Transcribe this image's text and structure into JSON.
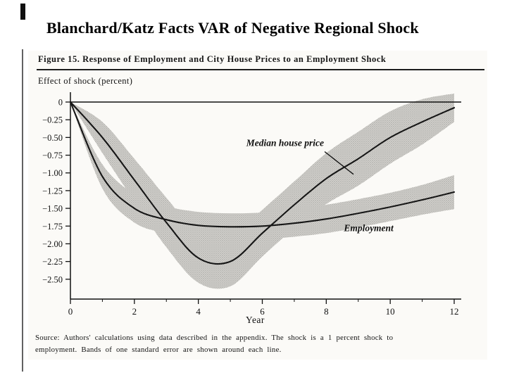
{
  "slide": {
    "title": "Blanchard/Katz Facts VAR of  Negative Regional Shock"
  },
  "figure": {
    "source_line1": "Source: Authors' calculations using data described in the appendix. The shock is a  1 percent shock to",
    "source_line2": "employment. Bands of one standard error are shown around each line."
  },
  "chart_data": {
    "type": "line",
    "title": "Figure 15.  Response of Employment and City House Prices to an Employment Shock",
    "xlabel": "Year",
    "ylabel": "Effect of shock (percent)",
    "x": [
      0,
      1,
      2,
      3,
      4,
      5,
      6,
      7,
      8,
      9,
      10,
      11,
      12
    ],
    "xlim": [
      0,
      12
    ],
    "ylim": [
      -2.78,
      0.15
    ],
    "x_ticks": [
      0,
      2,
      4,
      6,
      8,
      10,
      12
    ],
    "x_minor_ticks": [
      1,
      3,
      5,
      7,
      9,
      11
    ],
    "y_ticks": [
      0,
      -0.25,
      -0.5,
      -0.75,
      -1,
      -1.25,
      -1.5,
      -1.75,
      -2,
      -2.25,
      -2.5
    ],
    "grid": false,
    "legend_position": "inline-labels",
    "band_note": "one standard error",
    "series": [
      {
        "name": "Median house price",
        "values": [
          0,
          -0.5,
          -1.1,
          -1.7,
          -2.2,
          -2.25,
          -1.85,
          -1.45,
          -1.08,
          -0.8,
          -0.5,
          -0.28,
          -0.08
        ],
        "band_upper": [
          0,
          -0.28,
          -0.8,
          -1.35,
          -1.85,
          -1.9,
          -1.52,
          -1.12,
          -0.72,
          -0.42,
          -0.13,
          0.04,
          0.12
        ],
        "band_lower": [
          0,
          -0.72,
          -1.4,
          -2.05,
          -2.55,
          -2.6,
          -2.18,
          -1.78,
          -1.44,
          -1.18,
          -0.87,
          -0.6,
          -0.28
        ]
      },
      {
        "name": "Employment",
        "values": [
          0,
          -1.05,
          -1.5,
          -1.66,
          -1.74,
          -1.76,
          -1.75,
          -1.71,
          -1.65,
          -1.57,
          -1.48,
          -1.38,
          -1.27
        ],
        "band_upper": [
          0,
          -0.88,
          -1.3,
          -1.47,
          -1.55,
          -1.57,
          -1.56,
          -1.52,
          -1.45,
          -1.37,
          -1.28,
          -1.17,
          -1.03
        ],
        "band_lower": [
          0,
          -1.22,
          -1.7,
          -1.85,
          -1.93,
          -1.95,
          -1.94,
          -1.9,
          -1.85,
          -1.77,
          -1.68,
          -1.59,
          -1.51
        ]
      }
    ],
    "annotations": [
      {
        "text": "Median house price",
        "x": 5.5,
        "y": -0.62,
        "arrow": {
          "x1": 7.95,
          "y1": -0.7,
          "x2": 8.85,
          "y2": -1.02
        }
      },
      {
        "text": "Employment",
        "x": 8.55,
        "y": -1.82
      }
    ]
  }
}
